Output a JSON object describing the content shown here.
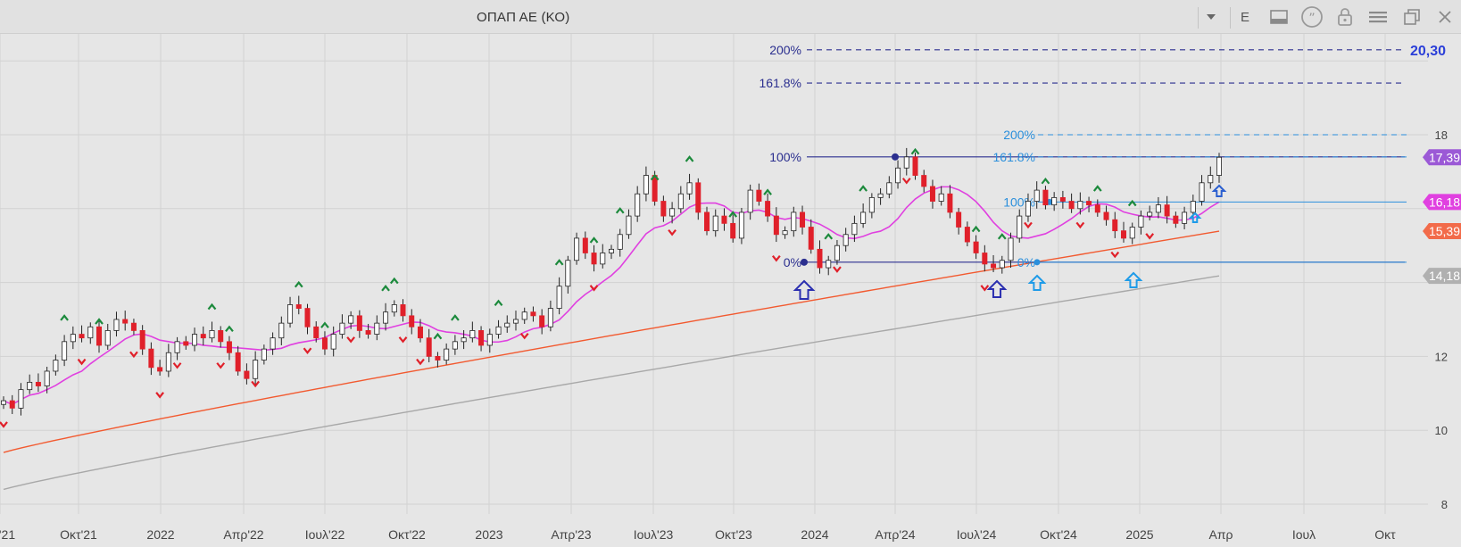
{
  "window": {
    "title": "ΟΠΑΠ ΑΕ (ΚΟ)",
    "period_button": "E",
    "icons": [
      "dropdown-arrow-icon",
      "panel-icon",
      "quote-icon",
      "lock-icon",
      "menu-icon",
      "restore-icon",
      "close-icon"
    ]
  },
  "colors": {
    "background": "#e6e6e6",
    "grid": "#d2d2d2",
    "up_candle": "#ffffff",
    "down_candle": "#e0202a",
    "ma_short": "#e040e0",
    "ma_mid": "#f25a30",
    "ma_long": "#a8a8a8",
    "fib_dark": "#2b2f8f",
    "fib_light": "#2a8fdc",
    "label_purple": "#9b59d6",
    "label_magenta": "#e040e0",
    "label_orange": "#f26b4a",
    "label_gray": "#b0b0b0"
  },
  "chart_data": {
    "type": "candlestick",
    "title": "ΟΠΑΠ ΑΕ (ΚΟ)",
    "y_axis": {
      "side": "right",
      "ticks": [
        "8",
        "10",
        "12",
        "18"
      ],
      "range": [
        7.8,
        21
      ]
    },
    "x_axis": {
      "ticks": [
        "'21",
        "Οκτ'21",
        "2022",
        "Απρ'22",
        "Ιουλ'22",
        "Οκτ'22",
        "2023",
        "Απρ'23",
        "Ιουλ'23",
        "Οκτ'23",
        "2024",
        "Απρ'24",
        "Ιουλ'24",
        "Οκτ'24",
        "2025",
        "Απρ",
        "Ιουλ",
        "Οκτ"
      ]
    },
    "grid": true,
    "ohlc_weekly_closes": [
      10.8,
      10.6,
      11.1,
      11.3,
      11.2,
      11.6,
      11.9,
      12.4,
      12.6,
      12.5,
      12.8,
      12.3,
      12.7,
      13.0,
      12.9,
      12.7,
      12.2,
      11.7,
      11.6,
      12.1,
      12.4,
      12.3,
      12.6,
      12.5,
      12.7,
      12.4,
      12.1,
      11.6,
      11.4,
      11.9,
      12.2,
      12.5,
      12.9,
      13.4,
      13.3,
      12.8,
      12.5,
      12.2,
      12.6,
      12.9,
      13.1,
      12.7,
      12.6,
      12.9,
      13.2,
      13.4,
      13.1,
      12.8,
      12.5,
      12.0,
      11.9,
      12.2,
      12.4,
      12.5,
      12.7,
      12.3,
      12.6,
      12.8,
      12.9,
      13.0,
      13.2,
      13.1,
      12.8,
      13.3,
      13.9,
      14.6,
      15.2,
      14.8,
      14.5,
      14.8,
      14.9,
      15.3,
      15.8,
      16.4,
      16.9,
      16.2,
      15.8,
      16.0,
      16.4,
      16.7,
      15.9,
      15.4,
      15.8,
      15.6,
      15.2,
      15.9,
      16.5,
      16.2,
      15.8,
      15.3,
      15.4,
      15.9,
      15.5,
      14.9,
      14.4,
      14.6,
      15.0,
      15.3,
      15.6,
      15.9,
      16.3,
      16.4,
      16.7,
      17.1,
      17.4,
      16.9,
      16.6,
      16.2,
      16.4,
      15.9,
      15.5,
      15.1,
      14.8,
      14.5,
      14.4,
      14.6,
      15.2,
      15.8,
      16.2,
      16.5,
      16.1,
      16.3,
      16.2,
      16.0,
      16.2,
      16.1,
      15.9,
      15.7,
      15.4,
      15.2,
      15.5,
      15.8,
      15.9,
      16.1,
      15.8,
      15.6,
      15.9,
      16.2,
      16.7,
      16.9,
      17.39
    ],
    "moving_averages": [
      {
        "name": "",
        "color": "#e040e0",
        "last": 16.18
      },
      {
        "name": "",
        "color": "#f25a30",
        "last": 15.39
      },
      {
        "name": "",
        "color": "#a8a8a8",
        "last": 14.18
      }
    ],
    "price_labels": [
      "17,39",
      "16,18",
      "15,39",
      "14,18",
      "20,30"
    ],
    "fibonacci": {
      "large": {
        "levels": [
          "200%",
          "161.8%",
          "100%",
          "0%"
        ],
        "values": [
          20.3,
          19.4,
          17.4,
          14.55
        ]
      },
      "small": {
        "levels": [
          "200%",
          "161.8%",
          "100%",
          "0%"
        ],
        "values": [
          18.0,
          17.4,
          16.18,
          14.55
        ]
      }
    },
    "annotations": {
      "swing_highs_up_markers": 24,
      "swing_lows_down_markers": 19,
      "blue_up_arrows": 5
    }
  }
}
